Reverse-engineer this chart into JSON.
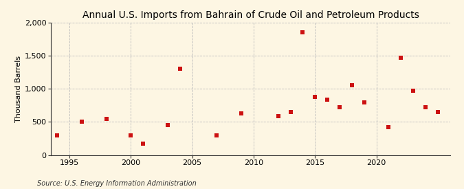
{
  "title": "Annual U.S. Imports from Bahrain of Crude Oil and Petroleum Products",
  "ylabel": "Thousand Barrels",
  "source": "Source: U.S. Energy Information Administration",
  "background_color": "#fdf6e3",
  "marker_color": "#cc1111",
  "years": [
    1994,
    1996,
    1998,
    2000,
    2001,
    2003,
    2004,
    2007,
    2009,
    2012,
    2013,
    2014,
    2015,
    2016,
    2017,
    2018,
    2019,
    2021,
    2022,
    2023,
    2024,
    2025
  ],
  "values": [
    300,
    500,
    550,
    300,
    175,
    450,
    1300,
    300,
    625,
    590,
    650,
    1850,
    875,
    840,
    725,
    1050,
    800,
    425,
    1470,
    975,
    725,
    650
  ],
  "xlim": [
    1993.5,
    2026
  ],
  "ylim": [
    0,
    2000
  ],
  "xticks": [
    1995,
    2000,
    2005,
    2010,
    2015,
    2020
  ],
  "yticks": [
    0,
    500,
    1000,
    1500,
    2000
  ],
  "ytick_labels": [
    "0",
    "500",
    "1,000",
    "1,500",
    "2,000"
  ],
  "grid_color": "#bbbbbb",
  "title_fontsize": 10,
  "label_fontsize": 8,
  "tick_fontsize": 8,
  "source_fontsize": 7
}
